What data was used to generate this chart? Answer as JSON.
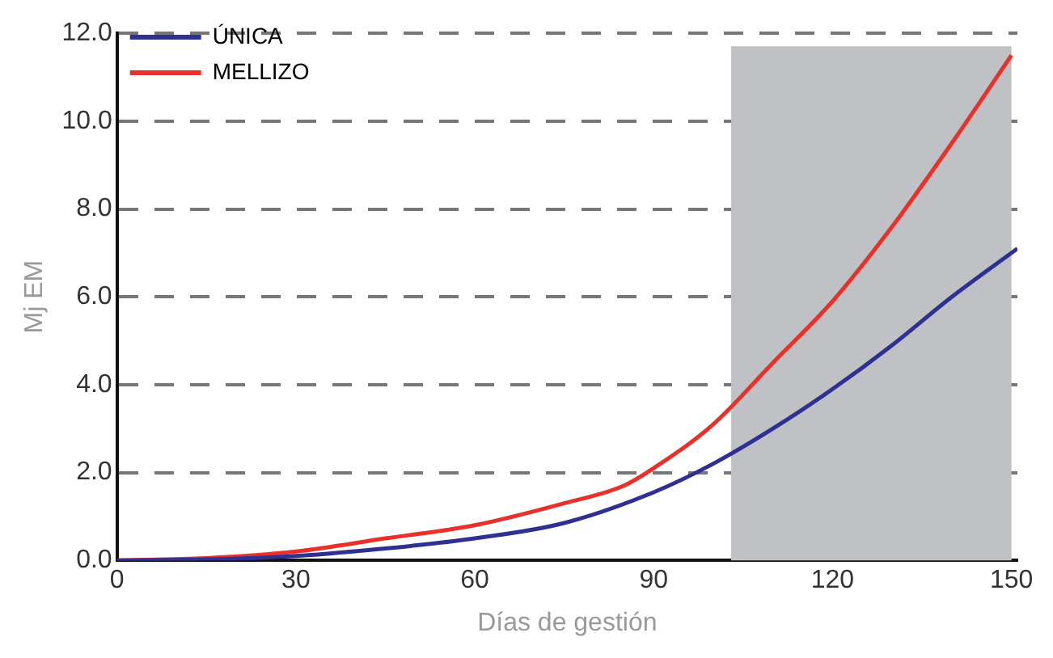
{
  "chart_data": {
    "type": "line",
    "xlabel": "Días de gestión",
    "ylabel": "Mj EM",
    "xlim": [
      0,
      151
    ],
    "xticks": [
      0,
      30,
      60,
      90,
      120,
      150
    ],
    "ylim": [
      0,
      12
    ],
    "yticks": [
      {
        "value": 0,
        "label": "0.0"
      },
      {
        "value": 2,
        "label": "2.0"
      },
      {
        "value": 4,
        "label": "4.0"
      },
      {
        "value": 6,
        "label": "6.0"
      },
      {
        "value": 8,
        "label": "8.0"
      },
      {
        "value": 10,
        "label": "10.0"
      },
      {
        "value": 12,
        "label": "12.0"
      }
    ],
    "grid": "y",
    "legend": "top left",
    "line_style": "solid",
    "marker": "none",
    "bands": [
      {
        "axis": "x",
        "from": 103,
        "to": 150,
        "color": "#c0c1c4"
      }
    ],
    "series": [
      {
        "name": "ÚNICA",
        "color": "#2e3192",
        "x": [
          0,
          15,
          30,
          45,
          60,
          75,
          90,
          100,
          110,
          120,
          130,
          140,
          151
        ],
        "values": [
          0,
          0.02,
          0.1,
          0.27,
          0.5,
          0.85,
          1.55,
          2.2,
          3.0,
          3.9,
          4.9,
          6.0,
          7.1
        ]
      },
      {
        "name": "MELLIZO",
        "color": "#e8312a",
        "x": [
          0,
          15,
          30,
          45,
          60,
          75,
          85,
          90,
          100,
          110,
          120,
          130,
          140,
          150
        ],
        "values": [
          0,
          0.05,
          0.2,
          0.5,
          0.8,
          1.3,
          1.7,
          2.1,
          3.1,
          4.5,
          5.9,
          7.6,
          9.5,
          11.5
        ]
      }
    ]
  }
}
